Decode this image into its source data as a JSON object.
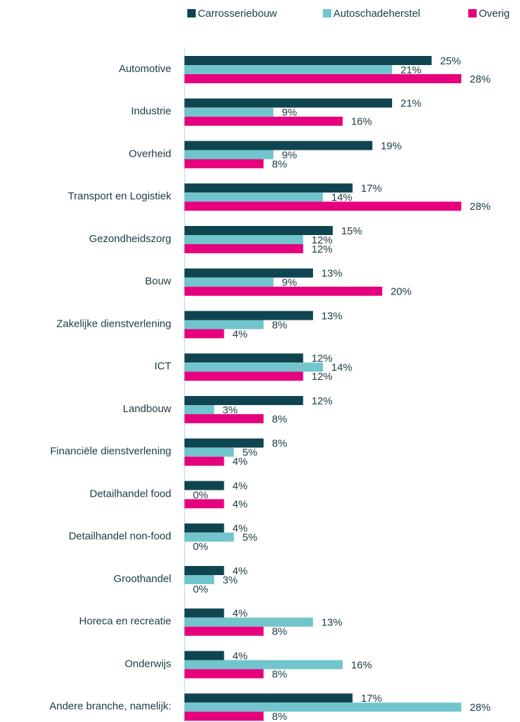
{
  "chart_data": {
    "type": "bar",
    "orientation": "horizontal",
    "categories": [
      "Automotive",
      "Industrie",
      "Overheid",
      "Transport en Logistiek",
      "Gezondheidszorg",
      "Bouw",
      "Zakelijke dienstverlening",
      "ICT",
      "Landbouw",
      "Financiële dienstverlening",
      "Detailhandel food",
      "Detailhandel non-food",
      "Groothandel",
      "Horeca en recreatie",
      "Onderwijs",
      "Andere branche, namelijk:"
    ],
    "series": [
      {
        "name": "Carrosseriebouw",
        "color": "#0f4550",
        "values": [
          25,
          21,
          19,
          17,
          15,
          13,
          13,
          12,
          12,
          8,
          4,
          4,
          4,
          4,
          4,
          17
        ],
        "value_labels": [
          "25%",
          "21%",
          "19%",
          "17%",
          "15%",
          "13%",
          "13%",
          "12%",
          "12%",
          "8%",
          "4%",
          "4%",
          "4%",
          "4%",
          "4%",
          "17%"
        ]
      },
      {
        "name": "Autoschadeherstel",
        "color": "#72c5cc",
        "values": [
          21,
          9,
          9,
          14,
          12,
          9,
          8,
          14,
          3,
          5,
          0,
          5,
          3,
          13,
          16,
          28
        ],
        "value_labels": [
          "21%",
          "9%",
          "9%",
          "14%",
          "12%",
          "9%",
          "8%",
          "14%",
          "3%",
          "5%",
          "0%",
          "5%",
          "3%",
          "13%",
          "16%",
          "28%"
        ]
      },
      {
        "name": "Overig",
        "color": "#e6007e",
        "values": [
          28,
          16,
          8,
          28,
          12,
          20,
          4,
          12,
          8,
          4,
          4,
          0,
          0,
          8,
          8,
          8
        ],
        "value_labels": [
          "28%",
          "16%",
          "8%",
          "28%",
          "12%",
          "20%",
          "4%",
          "12%",
          "8%",
          "4%",
          "4%",
          "0%",
          "0%",
          "8%",
          "8%",
          "8%"
        ]
      }
    ],
    "legend": "top"
  }
}
